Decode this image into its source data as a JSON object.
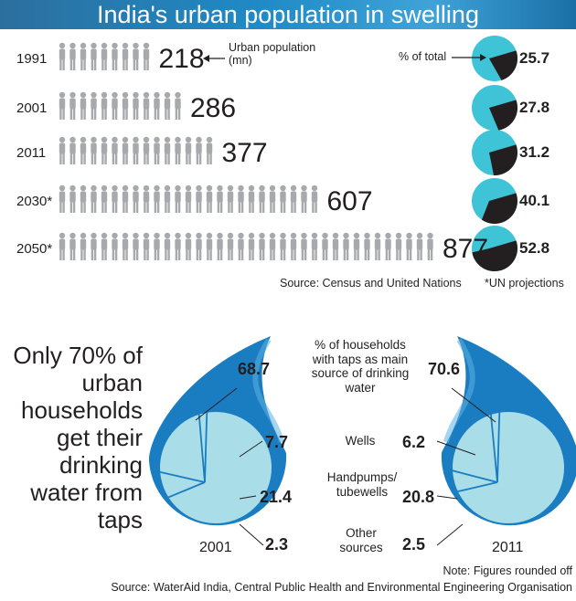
{
  "title": "India's urban population in swelling",
  "colors": {
    "water_light": "#a9dde8",
    "water_dark": "#1a7dc2",
    "share_cyan": "#3fc3d6",
    "share_black": "#231f20",
    "figure_gray": "#a7a9ac"
  },
  "population_chart": {
    "annotations": {
      "urban_population": "Urban population (mn)",
      "percent_total": "% of total"
    },
    "source": "Source: Census and United Nations",
    "projection_note": "*UN projections"
  },
  "water_chart": {
    "headline": "Only 70% of urban households get their drinking water from taps",
    "note": "Note: Figures rounded off",
    "source": "Source: WaterAid India, Central Public Health and Environmental Engineering Organisation"
  },
  "chart_data": [
    {
      "type": "bar",
      "title": "India's urban population in swelling",
      "categories": [
        "1991",
        "2001",
        "2011",
        "2030*",
        "2050*"
      ],
      "series": [
        {
          "name": "Urban population (mn)",
          "values": [
            218,
            286,
            377,
            607,
            877
          ]
        },
        {
          "name": "% of total",
          "values": [
            25.7,
            27.8,
            31.2,
            40.1,
            52.8
          ]
        }
      ],
      "value_labels": [
        "218",
        "286",
        "377",
        "607",
        "877"
      ],
      "pct_labels": [
        "25.7",
        "27.8",
        "31.2",
        "40.1",
        "52.8"
      ]
    },
    {
      "type": "pie",
      "title": "% of households with taps as main source of drinking water",
      "categories": [
        "Taps",
        "Wells",
        "Handpumps/ tubewells",
        "Other sources"
      ],
      "category_labels": [
        "% of households with taps as main source of drinking water",
        "Wells",
        "Handpumps/ tubewells",
        "Other sources"
      ],
      "series": [
        {
          "name": "2001",
          "values": [
            68.7,
            7.7,
            21.4,
            2.3
          ],
          "labels": [
            "68.7",
            "7.7",
            "21.4",
            "2.3"
          ]
        },
        {
          "name": "2011",
          "values": [
            70.6,
            6.2,
            20.8,
            2.5
          ],
          "labels": [
            "70.6",
            "6.2",
            "20.8",
            "2.5"
          ]
        }
      ],
      "years": [
        "2001",
        "2011"
      ]
    }
  ]
}
